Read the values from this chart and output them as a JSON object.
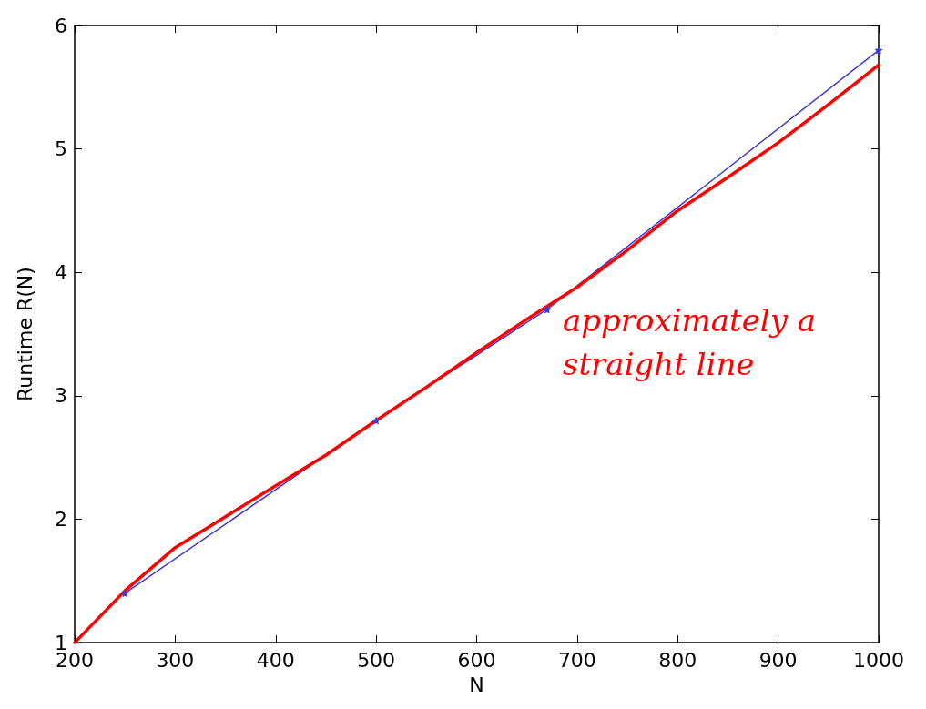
{
  "chart_data": {
    "type": "line",
    "xlabel": "N",
    "ylabel": "Runtime R(N)",
    "xlim": [
      200,
      1000
    ],
    "ylim": [
      1,
      6
    ],
    "xticks": [
      200,
      300,
      400,
      500,
      600,
      700,
      800,
      900,
      1000
    ],
    "yticks": [
      1,
      2,
      3,
      4,
      5,
      6
    ],
    "grid": false,
    "series": [
      {
        "color": "#3b3bd6",
        "marker": "star",
        "x": [
          250,
          500,
          670,
          1000
        ],
        "values": [
          1.4,
          2.8,
          3.7,
          5.8
        ]
      },
      {
        "color": "#ff0000",
        "marker": "none",
        "x": [
          200,
          250,
          300,
          350,
          400,
          450,
          500,
          550,
          600,
          650,
          700,
          750,
          800,
          850,
          900,
          950,
          1000
        ],
        "values": [
          1.0,
          1.42,
          1.77,
          2.02,
          2.27,
          2.52,
          2.8,
          3.07,
          3.35,
          3.62,
          3.88,
          4.18,
          4.5,
          4.77,
          5.05,
          5.36,
          5.68
        ]
      }
    ],
    "annotations": [
      "approximately a straight line"
    ]
  }
}
